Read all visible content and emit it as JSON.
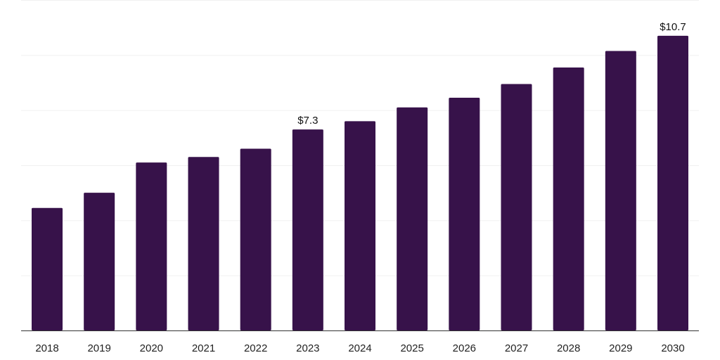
{
  "chart_data": {
    "type": "bar",
    "title": "",
    "xlabel": "",
    "ylabel": "",
    "categories": [
      "2018",
      "2019",
      "2020",
      "2021",
      "2022",
      "2023",
      "2024",
      "2025",
      "2026",
      "2027",
      "2028",
      "2029",
      "2030"
    ],
    "values": [
      4.45,
      5.0,
      6.1,
      6.3,
      6.6,
      7.3,
      7.6,
      8.1,
      8.45,
      8.95,
      9.55,
      10.15,
      10.7
    ],
    "data_labels": {
      "2023": "$7.3",
      "2030": "$10.7"
    },
    "ylim": [
      0,
      12
    ],
    "grid": true,
    "legend": "none",
    "colors": {
      "bar": "#37124a",
      "gridline": "#f0f0f0",
      "axis": "#333333"
    }
  }
}
